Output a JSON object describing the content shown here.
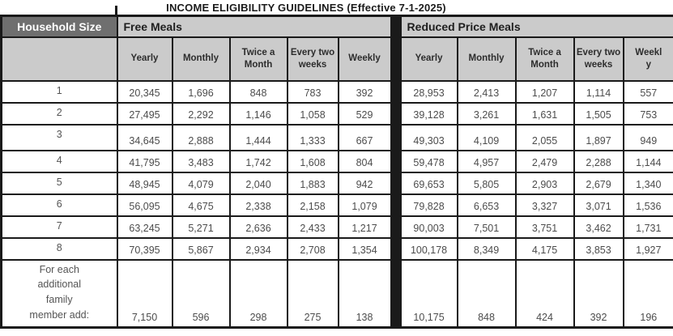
{
  "title": "INCOME ELIGIBILITY GUIDELINES (Effective 7-1-2025)",
  "colors": {
    "header_dark_bg": "#6f6f6f",
    "header_dark_text": "#ffffff",
    "header_light_bg": "#cbcbcb",
    "border": "#1a1a1a",
    "data_text": "#4c4c4c",
    "page_bg": "#ffffff"
  },
  "table": {
    "corner_header": "Household Size",
    "sections": [
      {
        "label": "Free Meals",
        "columns": [
          "Yearly",
          "Monthly",
          "Twice a Month",
          "Every two weeks",
          "Weekly"
        ]
      },
      {
        "label": "Reduced Price Meals",
        "columns": [
          "Yearly",
          "Monthly",
          "Twice a Month",
          "Every two weeks",
          "Weekly"
        ]
      }
    ],
    "rows": [
      {
        "label": "1",
        "free": [
          "20,345",
          "1,696",
          "848",
          "783",
          "392"
        ],
        "reduced": [
          "28,953",
          "2,413",
          "1,207",
          "1,114",
          "557"
        ]
      },
      {
        "label": "2",
        "free": [
          "27,495",
          "2,292",
          "1,146",
          "1,058",
          "529"
        ],
        "reduced": [
          "39,128",
          "3,261",
          "1,631",
          "1,505",
          "753"
        ]
      },
      {
        "label": "3",
        "free": [
          "34,645",
          "2,888",
          "1,444",
          "1,333",
          "667"
        ],
        "reduced": [
          "49,303",
          "4,109",
          "2,055",
          "1,897",
          "949"
        ]
      },
      {
        "label": "4",
        "free": [
          "41,795",
          "3,483",
          "1,742",
          "1,608",
          "804"
        ],
        "reduced": [
          "59,478",
          "4,957",
          "2,479",
          "2,288",
          "1,144"
        ]
      },
      {
        "label": "5",
        "free": [
          "48,945",
          "4,079",
          "2,040",
          "1,883",
          "942"
        ],
        "reduced": [
          "69,653",
          "5,805",
          "2,903",
          "2,679",
          "1,340"
        ]
      },
      {
        "label": "6",
        "free": [
          "56,095",
          "4,675",
          "2,338",
          "2,158",
          "1,079"
        ],
        "reduced": [
          "79,828",
          "6,653",
          "3,327",
          "3,071",
          "1,536"
        ]
      },
      {
        "label": "7",
        "free": [
          "63,245",
          "5,271",
          "2,636",
          "2,433",
          "1,217"
        ],
        "reduced": [
          "90,003",
          "7,501",
          "3,751",
          "3,462",
          "1,731"
        ]
      },
      {
        "label": "8",
        "free": [
          "70,395",
          "5,867",
          "2,934",
          "2,708",
          "1,354"
        ],
        "reduced": [
          "100,178",
          "8,349",
          "4,175",
          "3,853",
          "1,927"
        ]
      },
      {
        "label": "For each\nadditional\nfamily\nmember add:",
        "free": [
          "7,150",
          "596",
          "298",
          "275",
          "138"
        ],
        "reduced": [
          "10,175",
          "848",
          "424",
          "392",
          "196"
        ]
      }
    ]
  }
}
